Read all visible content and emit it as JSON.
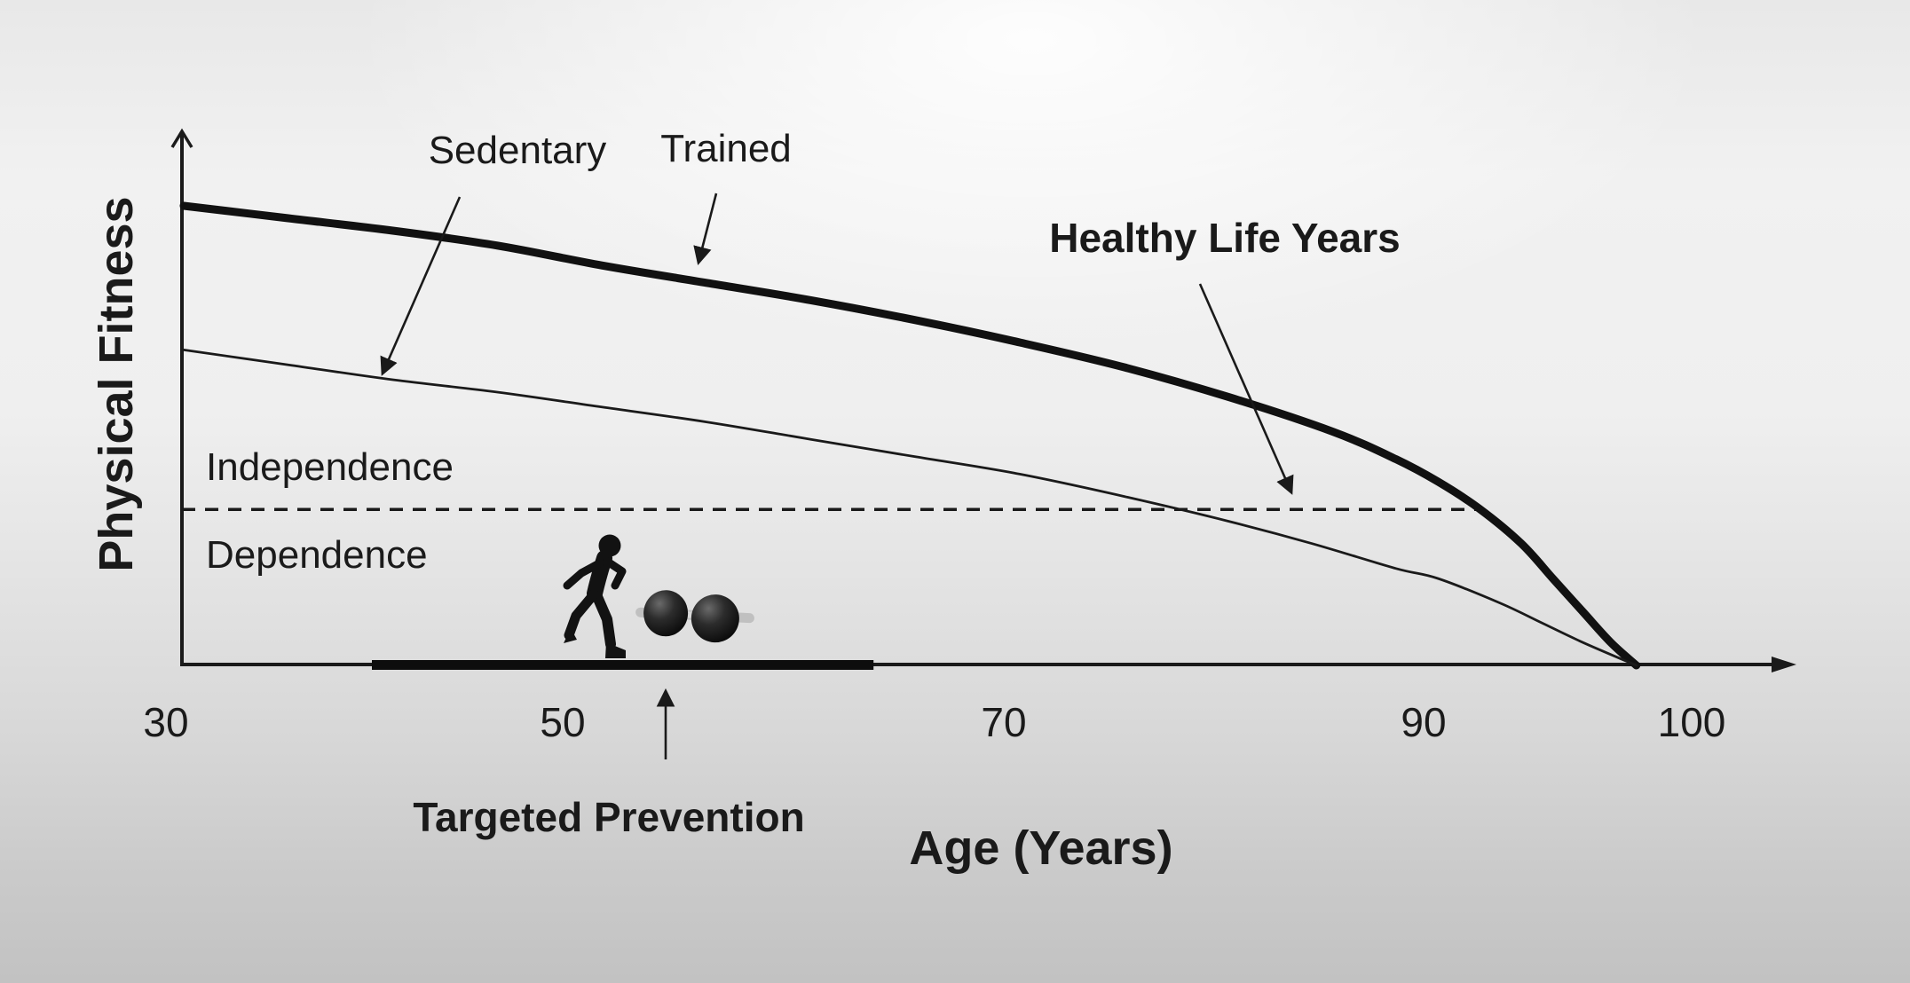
{
  "colors": {
    "ink": "#1a1a1a",
    "background_top": "#f7f7f7",
    "background_bottom": "#c2c2c2"
  },
  "y_axis_label": "Physical Fitness",
  "x_axis_label": "Age (Years)",
  "x_ticks": [
    "30",
    "50",
    "70",
    "90",
    "100"
  ],
  "labels": {
    "sedentary": "Sedentary",
    "trained": "Trained",
    "healthy_life_years": "Healthy Life Years",
    "independence": "Independence",
    "dependence": "Dependence",
    "targeted_prevention": "Targeted Prevention"
  },
  "icons": {
    "runner": "runner-icon",
    "dumbbell": "dumbbell-icon"
  },
  "chart_data": {
    "type": "line",
    "title": "",
    "xlabel": "Age (Years)",
    "ylabel": "Physical Fitness",
    "x_ticks": [
      30,
      50,
      70,
      90,
      100
    ],
    "xlim": [
      30,
      105
    ],
    "y_scale": "relative fitness, unlabeled axis (0-100)",
    "grid": false,
    "legend": "inline labels with arrows",
    "series": [
      {
        "name": "Trained",
        "line": "thick solid",
        "points": [
          [
            30,
            92.5
          ],
          [
            35,
            90
          ],
          [
            40,
            87.5
          ],
          [
            45,
            84.5
          ],
          [
            50,
            80.5
          ],
          [
            55,
            77
          ],
          [
            60,
            73.5
          ],
          [
            65,
            69.5
          ],
          [
            70,
            65
          ],
          [
            75,
            60
          ],
          [
            80,
            54
          ],
          [
            85,
            47
          ],
          [
            88,
            41.5
          ],
          [
            90,
            37
          ],
          [
            92,
            31.5
          ],
          [
            94,
            24.5
          ],
          [
            95.5,
            17.5
          ],
          [
            97,
            10.5
          ],
          [
            98.3,
            4.5
          ],
          [
            99.5,
            0
          ]
        ]
      },
      {
        "name": "Sedentary",
        "line": "thin solid",
        "points": [
          [
            30,
            63.5
          ],
          [
            35,
            60.5
          ],
          [
            40,
            57.5
          ],
          [
            45,
            55
          ],
          [
            50,
            52
          ],
          [
            55,
            49
          ],
          [
            60,
            45.5
          ],
          [
            65,
            42
          ],
          [
            70,
            38.5
          ],
          [
            75,
            34
          ],
          [
            80,
            29
          ],
          [
            84,
            24.5
          ],
          [
            88,
            19.5
          ],
          [
            90,
            17.5
          ],
          [
            93,
            12.5
          ],
          [
            95,
            8.5
          ],
          [
            97,
            4.5
          ],
          [
            99.5,
            0
          ]
        ]
      }
    ],
    "threshold": {
      "value": 31.4,
      "style": "dashed horizontal line",
      "label_above": "Independence",
      "label_below": "Dependence"
    },
    "annotations": [
      {
        "text": "Healthy Life Years",
        "style": "bold label with arrow",
        "points_to": "gap between Trained and Sedentary curves near the Independence threshold"
      },
      {
        "text": "Targeted Prevention",
        "style": "bold label with upward arrow to thick bar on x-axis",
        "bar_age_span": [
          39,
          63
        ]
      }
    ]
  }
}
